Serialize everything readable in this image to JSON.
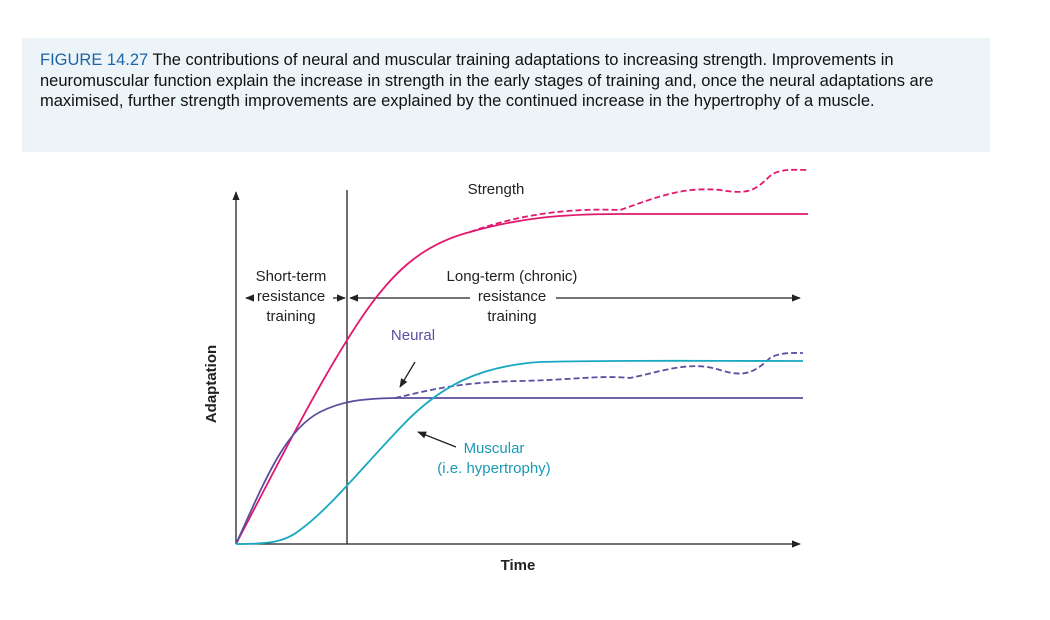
{
  "caption": {
    "label": "FIGURE 14.27",
    "text": "The contributions of neural and muscular training adaptations to increasing strength. Improvements in neuromuscular function explain the increase in strength in the early stages of training and, once the neural adaptations are maximised, further strength improvements are explained by the continued increase in the hypertrophy of a muscle."
  },
  "diagram": {
    "y_axis_label": "Adaptation",
    "x_axis_label": "Time",
    "curves": {
      "strength": "Strength",
      "neural": "Neural",
      "muscular": [
        "Muscular",
        "(i.e. hypertrophy)"
      ]
    },
    "phases": {
      "short_term": [
        "Short-term",
        "resistance",
        "training"
      ],
      "long_term": [
        "Long-term (chronic)",
        "resistance",
        "training"
      ]
    }
  }
}
